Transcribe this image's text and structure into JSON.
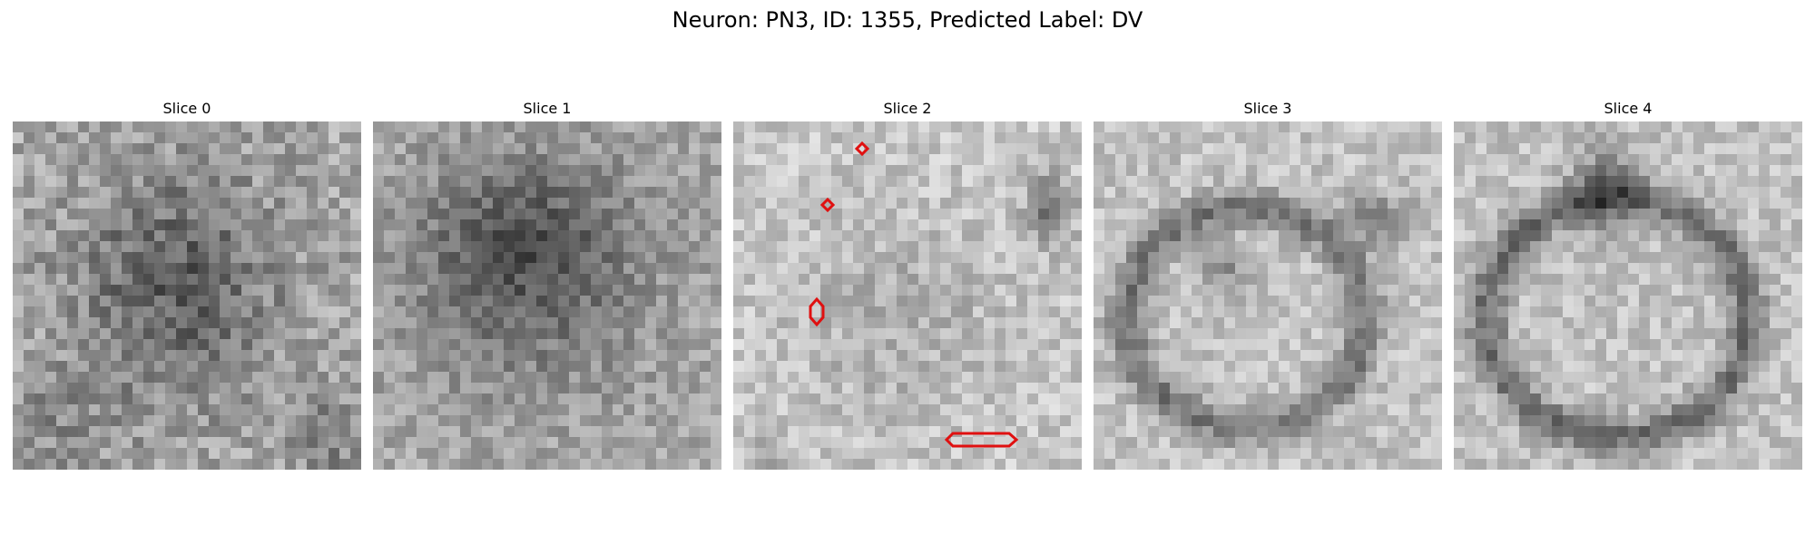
{
  "figure": {
    "title": "Neuron: PN3, ID: 1355, Predicted Label: DV",
    "colormap": "grayscale",
    "overlay_color": "#e01010"
  },
  "panels": [
    {
      "title": "Slice 0",
      "image": "grayscale cell slice, diffuse dark blob centered",
      "overlays": []
    },
    {
      "title": "Slice 1",
      "image": "grayscale cell slice, dark blob upper-center",
      "overlays": []
    },
    {
      "title": "Slice 2",
      "image": "grayscale cell slice, light background, faint structure",
      "overlays": [
        "small diamond contour top",
        "small diamond contour upper-left",
        "hexagon contour left",
        "elongated hexagon contour bottom"
      ]
    },
    {
      "title": "Slice 3",
      "image": "grayscale cell slice, ring-shaped dark membrane",
      "overlays": []
    },
    {
      "title": "Slice 4",
      "image": "grayscale cell slice, ring-shaped dark membrane",
      "overlays": []
    }
  ]
}
